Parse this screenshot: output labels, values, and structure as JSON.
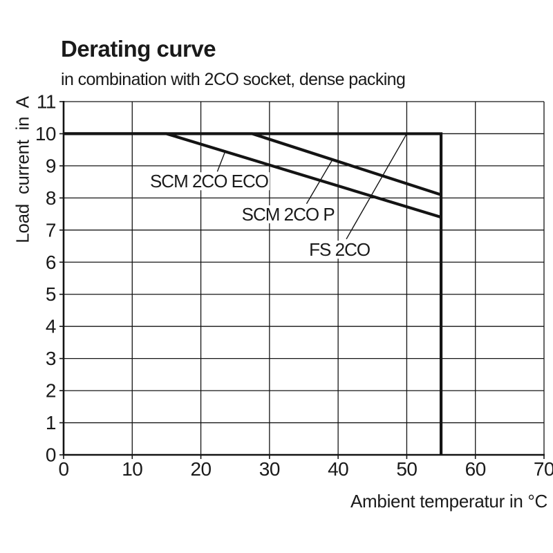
{
  "chart_data": {
    "type": "line",
    "title": "Derating curve",
    "subtitle": "in combination with 2CO socket, dense packing",
    "xlabel": "Ambient temperatur in °C",
    "ylabel": "Load current in A",
    "xlim": [
      0,
      70
    ],
    "ylim": [
      0,
      11
    ],
    "xticks": [
      0,
      10,
      20,
      30,
      40,
      50,
      60,
      70
    ],
    "yticks": [
      0,
      1,
      2,
      3,
      4,
      5,
      6,
      7,
      8,
      9,
      10,
      11
    ],
    "grid": true,
    "line_color": "#141414",
    "background": "#ffffff",
    "legend_position": "inline-annotations",
    "series": [
      {
        "name": "FS 2CO",
        "points": [
          [
            0,
            10
          ],
          [
            55,
            10
          ],
          [
            55,
            0
          ]
        ]
      },
      {
        "name": "SCM 2CO P",
        "points": [
          [
            0,
            10
          ],
          [
            27.5,
            10
          ],
          [
            55,
            8.1
          ]
        ]
      },
      {
        "name": "SCM 2CO ECO",
        "points": [
          [
            0,
            10
          ],
          [
            15,
            10
          ],
          [
            55,
            7.4
          ]
        ]
      }
    ],
    "annotations": [
      {
        "label": "SCM 2CO ECO",
        "x": 21.2,
        "y": 8.52,
        "leader": [
          [
            22.4,
            8.82
          ],
          [
            23.6,
            9.48
          ]
        ]
      },
      {
        "label": "SCM 2CO P",
        "x": 32.7,
        "y": 7.49,
        "leader": [
          [
            35.4,
            7.82
          ],
          [
            39.2,
            9.2
          ]
        ]
      },
      {
        "label": "FS 2CO",
        "x": 40.2,
        "y": 6.39,
        "leader": [
          [
            41.2,
            6.72
          ],
          [
            50.0,
            10.0
          ]
        ]
      }
    ]
  }
}
